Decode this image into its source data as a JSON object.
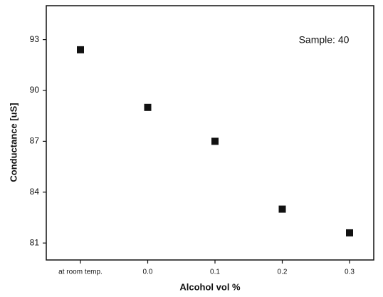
{
  "chart_data": {
    "type": "scatter",
    "xlabel": "Alcohol  vol %",
    "ylabel": "Conductance    [uS]",
    "annotation": "Sample: 40",
    "categories": [
      "at room temp.",
      "0.0",
      "0.1",
      "0.2",
      "0.3"
    ],
    "values": [
      92.4,
      89.0,
      87.0,
      83.0,
      81.6
    ],
    "color": "#111111",
    "ylim": [
      80,
      95
    ],
    "yticks": [
      81,
      84,
      87,
      90,
      93
    ]
  }
}
